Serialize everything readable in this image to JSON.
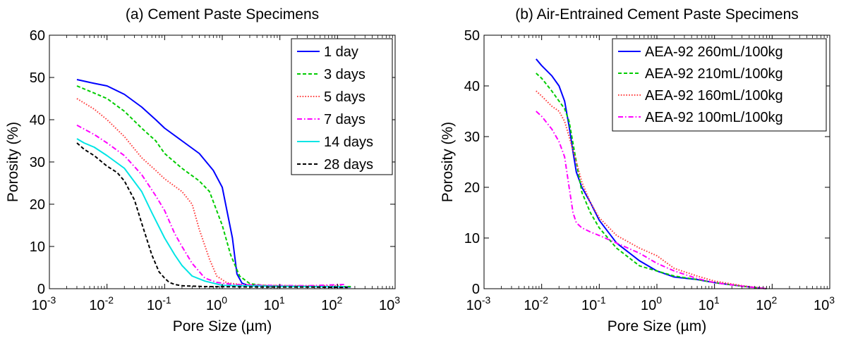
{
  "chart_data": [
    {
      "type": "line",
      "title": "(a) Cement Paste Specimens",
      "xlabel": "Pore Size (µm)",
      "ylabel": "Porosity (%)",
      "xscale": "log",
      "xlim": [
        0.001,
        1000
      ],
      "ylim": [
        0,
        60
      ],
      "x_ticks": [
        0.001,
        0.01,
        0.1,
        1,
        10,
        100,
        1000
      ],
      "x_tick_labels": [
        {
          "base": "10",
          "exp": "-3"
        },
        {
          "base": "10",
          "exp": "-2"
        },
        {
          "base": "10",
          "exp": "-1"
        },
        {
          "base": "10",
          "exp": "0"
        },
        {
          "base": "10",
          "exp": "1"
        },
        {
          "base": "10",
          "exp": "2"
        },
        {
          "base": "10",
          "exp": "3"
        }
      ],
      "y_ticks": [
        0,
        10,
        20,
        30,
        40,
        50,
        60
      ],
      "y_tick_labels": [
        "0",
        "10",
        "20",
        "30",
        "40",
        "50",
        "60"
      ],
      "grid": false,
      "legend_position": "top-right",
      "series": [
        {
          "name": "1 day",
          "color": "#0000ff",
          "dash": "solid",
          "x": [
            0.003,
            0.006,
            0.01,
            0.02,
            0.04,
            0.07,
            0.1,
            0.2,
            0.4,
            0.7,
            1.0,
            1.5,
            1.8,
            2.2,
            2.8,
            5,
            10,
            50,
            170
          ],
          "y": [
            49.5,
            48.6,
            48.0,
            46.0,
            43.0,
            40.0,
            38.0,
            35.0,
            32.0,
            28.0,
            24.0,
            12.0,
            3.5,
            1.3,
            0.8,
            0.7,
            0.6,
            0.5,
            0.4
          ]
        },
        {
          "name": "3 days",
          "color": "#00cc00",
          "dash": "dashed",
          "x": [
            0.003,
            0.006,
            0.01,
            0.02,
            0.04,
            0.07,
            0.1,
            0.2,
            0.4,
            0.6,
            1.0,
            1.4,
            2.0,
            3.0,
            5,
            10,
            50,
            170
          ],
          "y": [
            48.0,
            46.3,
            45.0,
            42.0,
            38.0,
            35.0,
            32.0,
            28.5,
            25.5,
            23.0,
            15.0,
            8.0,
            3.0,
            1.2,
            0.8,
            0.6,
            0.5,
            0.5
          ]
        },
        {
          "name": "5 days",
          "color": "#ff4040",
          "dash": "dotted",
          "x": [
            0.003,
            0.006,
            0.01,
            0.02,
            0.04,
            0.07,
            0.1,
            0.2,
            0.3,
            0.4,
            0.6,
            0.8,
            1.2,
            2.0,
            5,
            20,
            120
          ],
          "y": [
            45.0,
            42.5,
            40.0,
            36.0,
            31.0,
            28.0,
            26.0,
            23.0,
            20.0,
            14.0,
            7.0,
            3.0,
            1.4,
            1.0,
            0.8,
            0.7,
            0.7
          ]
        },
        {
          "name": "7 days",
          "color": "#ff00ff",
          "dash": "dashdot",
          "x": [
            0.003,
            0.006,
            0.01,
            0.02,
            0.04,
            0.07,
            0.1,
            0.15,
            0.2,
            0.3,
            0.5,
            0.8,
            1.5,
            5,
            30,
            130
          ],
          "y": [
            38.7,
            36.5,
            34.5,
            31.5,
            27.0,
            22.0,
            18.5,
            13.0,
            10.0,
            6.0,
            2.5,
            1.5,
            1.0,
            0.8,
            0.7,
            1.0
          ]
        },
        {
          "name": "14 days",
          "color": "#00e5e5",
          "dash": "solid",
          "x": [
            0.003,
            0.004,
            0.006,
            0.01,
            0.02,
            0.04,
            0.06,
            0.1,
            0.15,
            0.2,
            0.3,
            0.5,
            1.0,
            5,
            30,
            130
          ],
          "y": [
            35.5,
            34.5,
            33.5,
            31.5,
            28.5,
            23.0,
            18.0,
            12.0,
            8.0,
            5.5,
            3.0,
            1.8,
            0.8,
            0.6,
            0.5,
            0.5
          ]
        },
        {
          "name": "28 days",
          "color": "#000000",
          "dash": "dashed",
          "x": [
            0.003,
            0.004,
            0.006,
            0.01,
            0.015,
            0.02,
            0.03,
            0.04,
            0.06,
            0.08,
            0.1,
            0.12,
            0.15,
            0.2,
            0.5,
            5,
            30,
            150
          ],
          "y": [
            34.5,
            33.0,
            31.5,
            29.0,
            27.5,
            25.5,
            21.0,
            15.5,
            8.0,
            4.0,
            2.5,
            1.5,
            1.0,
            0.7,
            0.5,
            0.4,
            0.4,
            0.3
          ]
        }
      ]
    },
    {
      "type": "line",
      "title": "(b) Air-Entrained Cement Paste Specimens",
      "xlabel": "Pore Size (µm)",
      "ylabel": "Porosity (%)",
      "xscale": "log",
      "xlim": [
        0.001,
        1000
      ],
      "ylim": [
        0,
        50
      ],
      "x_ticks": [
        0.001,
        0.01,
        0.1,
        1,
        10,
        100,
        1000
      ],
      "x_tick_labels": [
        {
          "base": "10",
          "exp": "-3"
        },
        {
          "base": "10",
          "exp": "-2"
        },
        {
          "base": "10",
          "exp": "-1"
        },
        {
          "base": "10",
          "exp": "0"
        },
        {
          "base": "10",
          "exp": "1"
        },
        {
          "base": "10",
          "exp": "2"
        },
        {
          "base": "10",
          "exp": "3"
        }
      ],
      "y_ticks": [
        0,
        10,
        20,
        30,
        40,
        50
      ],
      "y_tick_labels": [
        "0",
        "10",
        "20",
        "30",
        "40",
        "50"
      ],
      "grid": false,
      "legend_position": "top-right",
      "series": [
        {
          "name": "AEA-92 260mL/100kg",
          "color": "#0000ff",
          "dash": "solid",
          "x": [
            0.008,
            0.01,
            0.015,
            0.02,
            0.025,
            0.03,
            0.035,
            0.04,
            0.05,
            0.07,
            0.1,
            0.2,
            0.5,
            1.0,
            2.0,
            5.0,
            10,
            30,
            80
          ],
          "y": [
            45.3,
            44.0,
            42.0,
            40.0,
            37.0,
            32.0,
            27.0,
            23.0,
            20.0,
            17.0,
            13.5,
            9.0,
            5.5,
            3.5,
            2.3,
            1.8,
            1.2,
            0.5,
            0.0
          ]
        },
        {
          "name": "AEA-92 210mL/100kg",
          "color": "#00cc00",
          "dash": "dashed",
          "x": [
            0.008,
            0.01,
            0.015,
            0.02,
            0.025,
            0.03,
            0.04,
            0.05,
            0.07,
            0.1,
            0.2,
            0.5,
            1.0,
            2.0,
            5.0,
            10,
            30,
            80
          ],
          "y": [
            42.5,
            41.5,
            39.0,
            37.0,
            35.5,
            33.0,
            25.0,
            19.0,
            15.0,
            12.0,
            8.0,
            4.5,
            3.5,
            2.5,
            1.8,
            1.2,
            0.5,
            0.0
          ]
        },
        {
          "name": "AEA-92 160mL/100kg",
          "color": "#ff4040",
          "dash": "dotted",
          "x": [
            0.008,
            0.01,
            0.015,
            0.02,
            0.025,
            0.03,
            0.04,
            0.05,
            0.07,
            0.1,
            0.2,
            0.5,
            1.0,
            2.0,
            5.0,
            10,
            30,
            80
          ],
          "y": [
            39.0,
            38.0,
            36.0,
            35.0,
            33.0,
            30.0,
            25.0,
            21.0,
            17.0,
            14.0,
            10.5,
            8.0,
            6.5,
            4.0,
            2.5,
            1.5,
            0.6,
            0.0
          ]
        },
        {
          "name": "AEA-92 100mL/100kg",
          "color": "#ff00ff",
          "dash": "dashdot",
          "x": [
            0.008,
            0.01,
            0.015,
            0.02,
            0.025,
            0.03,
            0.035,
            0.04,
            0.05,
            0.07,
            0.1,
            0.2,
            0.5,
            1.0,
            2.0,
            5.0,
            10,
            30,
            80
          ],
          "y": [
            35.0,
            34.0,
            31.5,
            29.0,
            26.0,
            20.0,
            15.0,
            13.0,
            12.0,
            11.2,
            10.5,
            9.0,
            7.0,
            5.0,
            3.5,
            2.0,
            1.2,
            0.5,
            0.0
          ]
        }
      ]
    }
  ]
}
